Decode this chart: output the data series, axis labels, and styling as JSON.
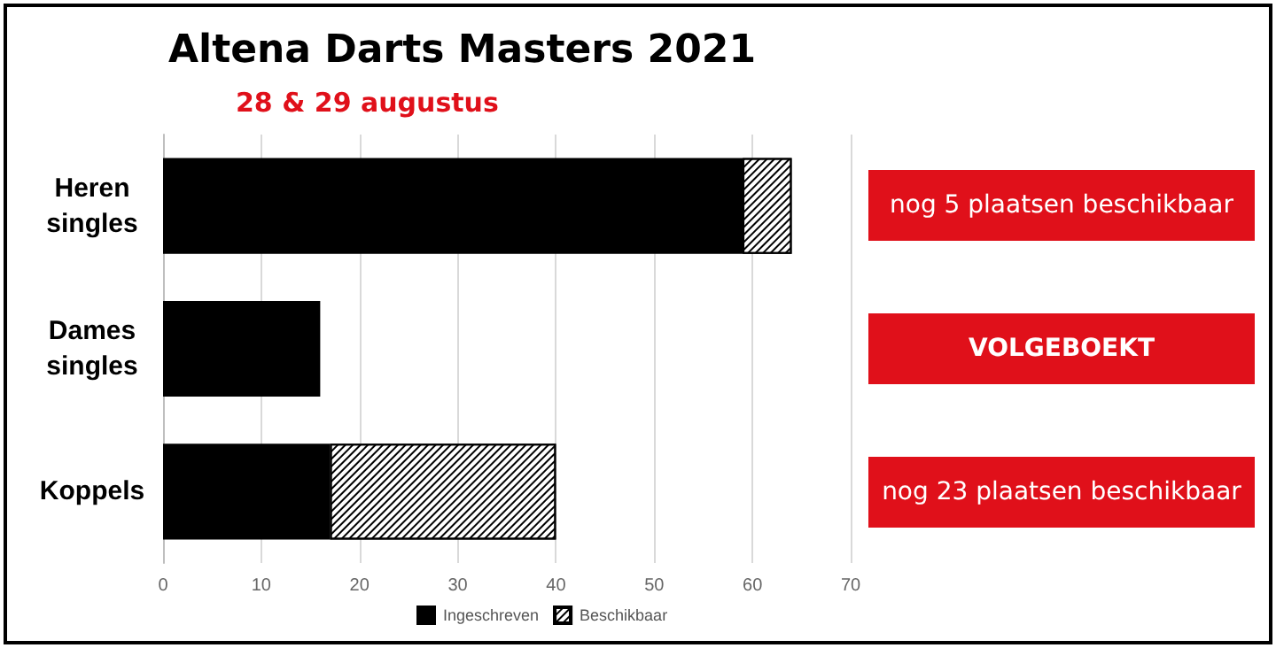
{
  "chart_data": {
    "type": "bar",
    "orientation": "horizontal",
    "stacked": true,
    "title": "Altena Darts Masters 2021",
    "subtitle": "28 & 29 augustus",
    "categories": [
      "Heren\nsingles",
      "Dames\nsingles",
      "Koppels"
    ],
    "series": [
      {
        "name": "Ingeschreven",
        "color": "#000000",
        "values": [
          59,
          16,
          17
        ]
      },
      {
        "name": "Beschikbaar",
        "color": "#ffffff",
        "values": [
          5,
          0,
          23
        ]
      }
    ],
    "xlim": [
      0,
      70
    ],
    "xticks": [
      0,
      10,
      20,
      30,
      40,
      50,
      60,
      70
    ],
    "grid": "x",
    "legend": "bottom",
    "annotations": [
      "nog 5 plaatsen beschikbaar",
      "VOLGEBOEKT",
      "nog 23 plaatsen beschikbaar"
    ]
  }
}
